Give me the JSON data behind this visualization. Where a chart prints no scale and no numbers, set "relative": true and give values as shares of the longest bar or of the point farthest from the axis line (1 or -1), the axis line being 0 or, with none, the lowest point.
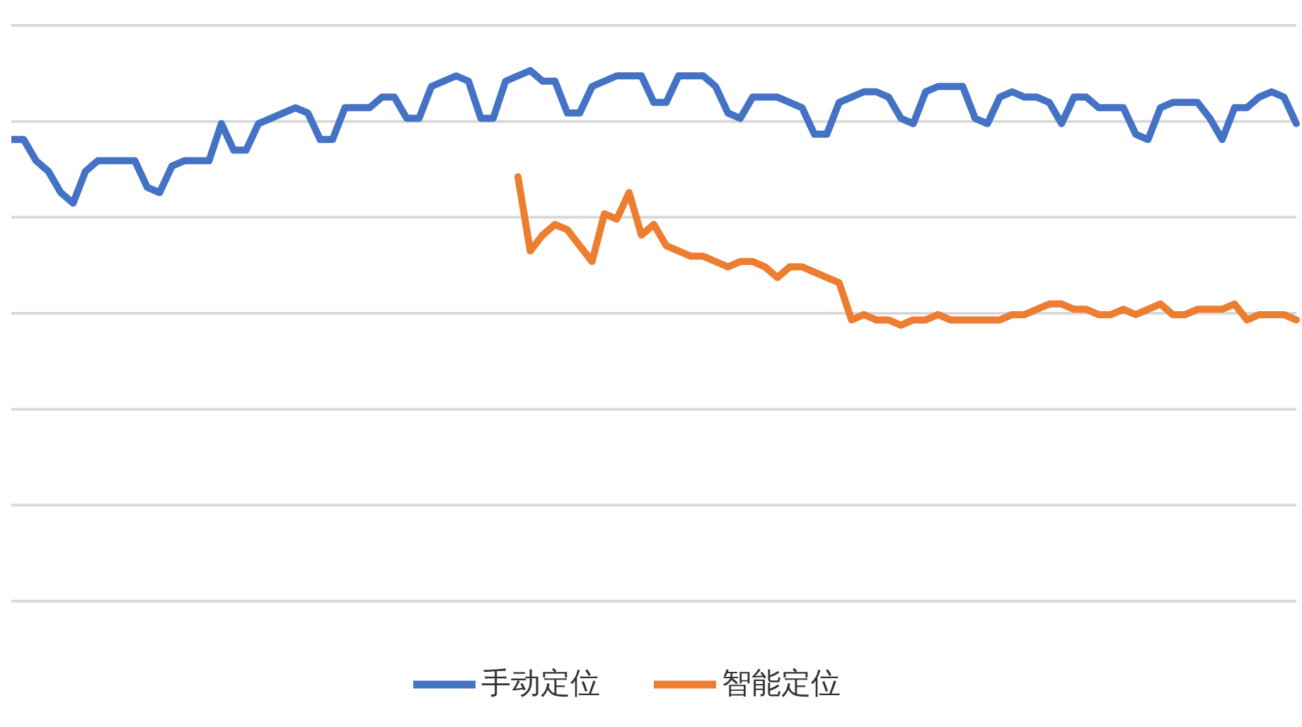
{
  "chart_data": {
    "type": "line",
    "relative": true,
    "grid": "y",
    "legend": "bottom",
    "marker": "none",
    "line_style": "solid",
    "categories": [
      null,
      null,
      null,
      null,
      null,
      null,
      null,
      null,
      null,
      null,
      null,
      null,
      null,
      null,
      null,
      null,
      null,
      null,
      null,
      null,
      null,
      null,
      null,
      null,
      null,
      null,
      null,
      null,
      null,
      null,
      null,
      null,
      null,
      null,
      null,
      null,
      null,
      null,
      null,
      null,
      null,
      null,
      null,
      null,
      null,
      null,
      null,
      null,
      null,
      null,
      null,
      null,
      null,
      null,
      null,
      null,
      null,
      null,
      null,
      null,
      null,
      null,
      null,
      null,
      null,
      null,
      null,
      null,
      null,
      null,
      null,
      null,
      null,
      null,
      null,
      null,
      null,
      null,
      null,
      null,
      null,
      null,
      null,
      null,
      null,
      null,
      null,
      null,
      null,
      null,
      null,
      null,
      null,
      null,
      null,
      null,
      null,
      null,
      null,
      null,
      null,
      null,
      null,
      null,
      null
    ],
    "series": [
      {
        "name": "手动定位",
        "color": "#4472c4",
        "values": [
          0.87,
          0.87,
          0.83,
          0.81,
          0.77,
          0.75,
          0.81,
          0.83,
          0.83,
          0.83,
          0.83,
          0.78,
          0.77,
          0.82,
          0.83,
          0.83,
          0.83,
          0.9,
          0.85,
          0.85,
          0.9,
          0.91,
          0.92,
          0.93,
          0.92,
          0.87,
          0.87,
          0.93,
          0.93,
          0.93,
          0.95,
          0.95,
          0.91,
          0.91,
          0.97,
          0.98,
          0.99,
          0.98,
          0.91,
          0.91,
          0.98,
          0.99,
          1,
          0.98,
          0.98,
          0.92,
          0.92,
          0.97,
          0.98,
          0.99,
          0.99,
          0.99,
          0.94,
          0.94,
          0.99,
          0.99,
          0.99,
          0.97,
          0.92,
          0.91,
          0.95,
          0.95,
          0.95,
          0.94,
          0.93,
          0.88,
          0.88,
          0.94,
          0.95,
          0.96,
          0.96,
          0.95,
          0.91,
          0.9,
          0.96,
          0.97,
          0.97,
          0.97,
          0.91,
          0.9,
          0.95,
          0.96,
          0.95,
          0.95,
          0.94,
          0.9,
          0.95,
          0.95,
          0.93,
          0.93,
          0.93,
          0.88,
          0.87,
          0.93,
          0.94,
          0.94,
          0.94,
          0.91,
          0.87,
          0.93,
          0.93,
          0.95,
          0.96,
          0.95,
          0.9
        ]
      },
      {
        "name": "智能定位",
        "color": "#ed7d31",
        "values": [
          null,
          null,
          null,
          null,
          null,
          null,
          null,
          null,
          null,
          null,
          null,
          null,
          null,
          null,
          null,
          null,
          null,
          null,
          null,
          null,
          null,
          null,
          null,
          null,
          null,
          null,
          null,
          null,
          null,
          null,
          null,
          null,
          null,
          null,
          null,
          null,
          null,
          null,
          null,
          null,
          null,
          0.8,
          0.66,
          0.69,
          0.71,
          0.7,
          0.67,
          0.64,
          0.73,
          0.72,
          0.77,
          0.69,
          0.71,
          0.67,
          0.66,
          0.65,
          0.65,
          0.64,
          0.63,
          0.64,
          0.64,
          0.63,
          0.61,
          0.63,
          0.63,
          0.62,
          0.61,
          0.6,
          0.53,
          0.54,
          0.53,
          0.53,
          0.52,
          0.53,
          0.53,
          0.54,
          0.53,
          0.53,
          0.53,
          0.53,
          0.53,
          0.54,
          0.54,
          0.55,
          0.56,
          0.56,
          0.55,
          0.55,
          0.54,
          0.54,
          0.55,
          0.54,
          0.55,
          0.56,
          0.54,
          0.54,
          0.55,
          0.55,
          0.55,
          0.56,
          0.53,
          0.54,
          0.54,
          0.54,
          0.53
        ]
      }
    ]
  }
}
